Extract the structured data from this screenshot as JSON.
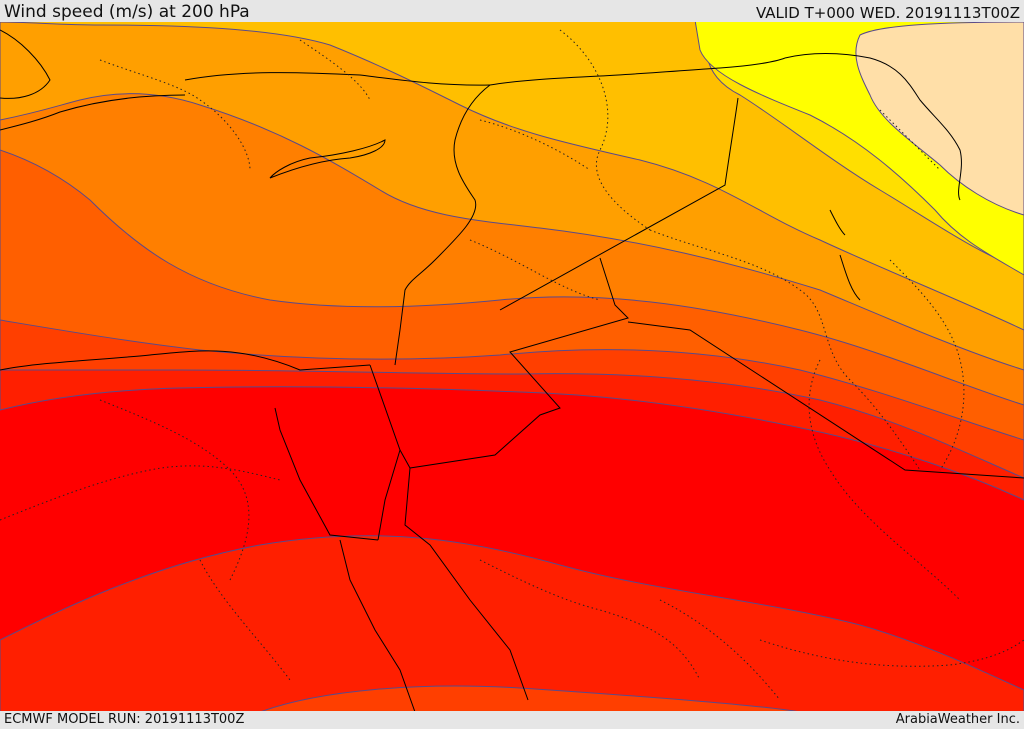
{
  "header": {
    "title": "Wind speed (m/s) at 200 hPa",
    "valid": "VALID T+000 WED. 20191113T00Z"
  },
  "footer": {
    "model_run": "ECMWF MODEL RUN: 20191113T00Z",
    "provider": "ArabiaWeather Inc."
  },
  "colors": {
    "band_1": "#ffdfa8",
    "band_2": "#ffff00",
    "band_3": "#ffdf00",
    "band_4": "#ffbf00",
    "band_5": "#ff9f00",
    "band_6": "#ff7f00",
    "band_7": "#ff5f00",
    "band_8": "#ff3f00",
    "band_9": "#ff1f00",
    "band_10": "#ff0000",
    "contour": "#5a4a8a",
    "border": "#000000"
  }
}
